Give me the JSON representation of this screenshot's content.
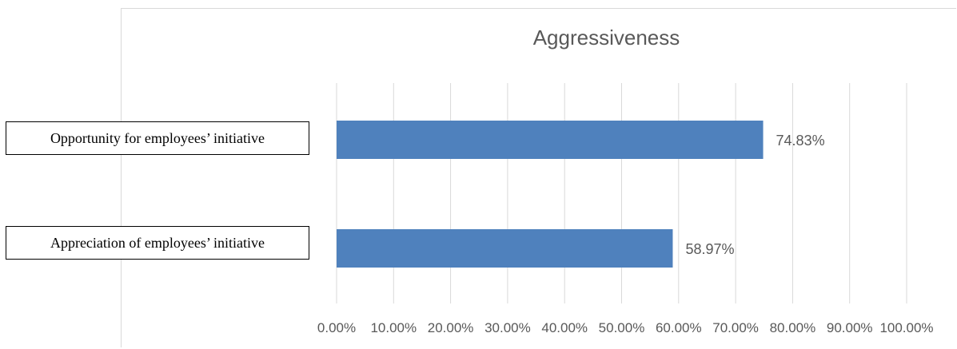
{
  "chart_data": {
    "type": "bar",
    "orientation": "horizontal",
    "title": "Aggressiveness",
    "categories": [
      "Opportunity for employees’ initiative",
      "Appreciation of employees’ initiative"
    ],
    "values": [
      74.83,
      58.97
    ],
    "data_labels": [
      "74.83%",
      "58.97%"
    ],
    "xlim": [
      0,
      100
    ],
    "x_ticks": [
      "0.00%",
      "10.00%",
      "20.00%",
      "30.00%",
      "40.00%",
      "50.00%",
      "60.00%",
      "70.00%",
      "80.00%",
      "90.00%",
      "100.00%"
    ],
    "grid": true,
    "bar_color": "#4f81bd",
    "grid_color": "#d9d9d9",
    "text_color": "#595959"
  }
}
